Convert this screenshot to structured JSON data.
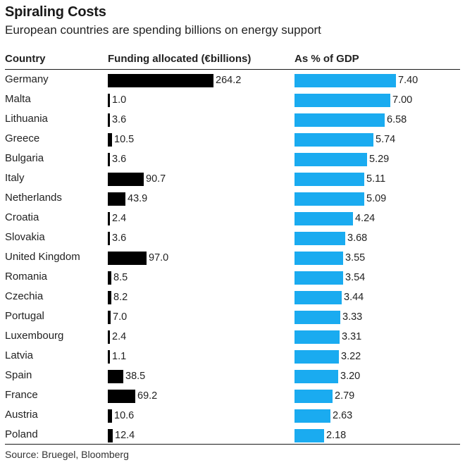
{
  "chart_data": {
    "type": "table",
    "title": "Spiraling Costs",
    "subtitle": "European countries are spending billions on energy support",
    "columns": {
      "country": "Country",
      "funding": "Funding allocated (€billions)",
      "gdp": "As % of GDP"
    },
    "funding_color": "#000000",
    "gdp_color": "#1aabf0",
    "rows": [
      {
        "country": "Germany",
        "funding": 264.2,
        "funding_label": "264.2",
        "gdp": 7.4,
        "gdp_label": "7.40"
      },
      {
        "country": "Malta",
        "funding": 1.0,
        "funding_label": "1.0",
        "gdp": 7.0,
        "gdp_label": "7.00"
      },
      {
        "country": "Lithuania",
        "funding": 3.6,
        "funding_label": "3.6",
        "gdp": 6.58,
        "gdp_label": "6.58"
      },
      {
        "country": "Greece",
        "funding": 10.5,
        "funding_label": "10.5",
        "gdp": 5.74,
        "gdp_label": "5.74"
      },
      {
        "country": "Bulgaria",
        "funding": 3.6,
        "funding_label": "3.6",
        "gdp": 5.29,
        "gdp_label": "5.29"
      },
      {
        "country": "Italy",
        "funding": 90.7,
        "funding_label": "90.7",
        "gdp": 5.11,
        "gdp_label": "5.11"
      },
      {
        "country": "Netherlands",
        "funding": 43.9,
        "funding_label": "43.9",
        "gdp": 5.09,
        "gdp_label": "5.09"
      },
      {
        "country": "Croatia",
        "funding": 2.4,
        "funding_label": "2.4",
        "gdp": 4.24,
        "gdp_label": "4.24"
      },
      {
        "country": "Slovakia",
        "funding": 3.6,
        "funding_label": "3.6",
        "gdp": 3.68,
        "gdp_label": "3.68"
      },
      {
        "country": "United Kingdom",
        "funding": 97.0,
        "funding_label": "97.0",
        "gdp": 3.55,
        "gdp_label": "3.55"
      },
      {
        "country": "Romania",
        "funding": 8.5,
        "funding_label": "8.5",
        "gdp": 3.54,
        "gdp_label": "3.54"
      },
      {
        "country": "Czechia",
        "funding": 8.2,
        "funding_label": "8.2",
        "gdp": 3.44,
        "gdp_label": "3.44"
      },
      {
        "country": "Portugal",
        "funding": 7.0,
        "funding_label": "7.0",
        "gdp": 3.33,
        "gdp_label": "3.33"
      },
      {
        "country": "Luxembourg",
        "funding": 2.4,
        "funding_label": "2.4",
        "gdp": 3.31,
        "gdp_label": "3.31"
      },
      {
        "country": "Latvia",
        "funding": 1.1,
        "funding_label": "1.1",
        "gdp": 3.22,
        "gdp_label": "3.22"
      },
      {
        "country": "Spain",
        "funding": 38.5,
        "funding_label": "38.5",
        "gdp": 3.2,
        "gdp_label": "3.20"
      },
      {
        "country": "France",
        "funding": 69.2,
        "funding_label": "69.2",
        "gdp": 2.79,
        "gdp_label": "2.79"
      },
      {
        "country": "Austria",
        "funding": 10.6,
        "funding_label": "10.6",
        "gdp": 2.63,
        "gdp_label": "2.63"
      },
      {
        "country": "Poland",
        "funding": 12.4,
        "funding_label": "12.4",
        "gdp": 2.18,
        "gdp_label": "2.18"
      }
    ],
    "source": "Source: Bruegel, Bloomberg"
  }
}
